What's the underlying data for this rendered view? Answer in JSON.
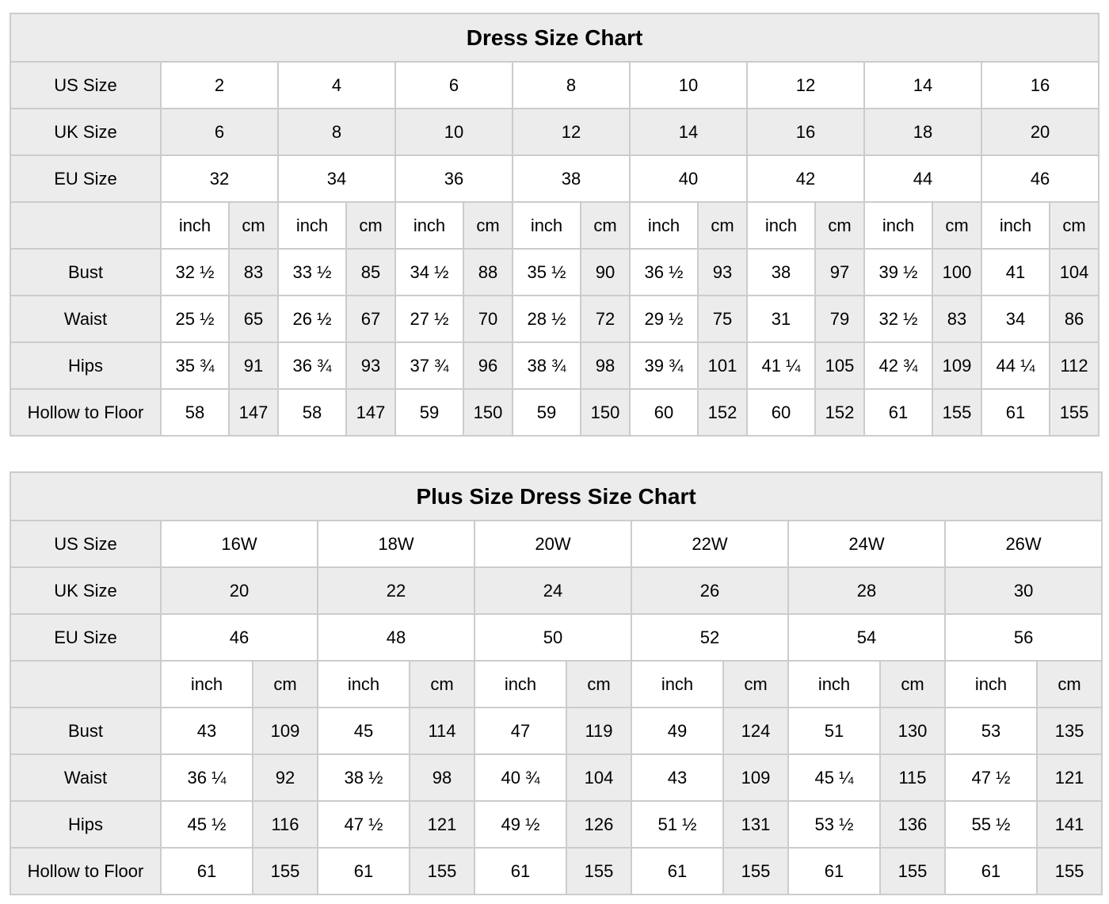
{
  "colors": {
    "background": "#ffffff",
    "shaded_cell": "#ececec",
    "border": "#cccccc",
    "text": "#000000"
  },
  "chart_data": [
    {
      "type": "table",
      "title": "Dress Size Chart",
      "unit_headers": [
        "inch",
        "cm"
      ],
      "size_rows": [
        {
          "label": "US Size",
          "shaded": false,
          "values": [
            "2",
            "4",
            "6",
            "8",
            "10",
            "12",
            "14",
            "16"
          ]
        },
        {
          "label": "UK Size",
          "shaded": true,
          "values": [
            "6",
            "8",
            "10",
            "12",
            "14",
            "16",
            "18",
            "20"
          ]
        },
        {
          "label": "EU Size",
          "shaded": false,
          "values": [
            "32",
            "34",
            "36",
            "38",
            "40",
            "42",
            "44",
            "46"
          ]
        }
      ],
      "measure_rows": [
        {
          "label": "Bust",
          "pairs": [
            [
              "32 ½",
              "83"
            ],
            [
              "33 ½",
              "85"
            ],
            [
              "34 ½",
              "88"
            ],
            [
              "35 ½",
              "90"
            ],
            [
              "36 ½",
              "93"
            ],
            [
              "38",
              "97"
            ],
            [
              "39 ½",
              "100"
            ],
            [
              "41",
              "104"
            ]
          ]
        },
        {
          "label": "Waist",
          "pairs": [
            [
              "25 ½",
              "65"
            ],
            [
              "26 ½",
              "67"
            ],
            [
              "27 ½",
              "70"
            ],
            [
              "28 ½",
              "72"
            ],
            [
              "29 ½",
              "75"
            ],
            [
              "31",
              "79"
            ],
            [
              "32 ½",
              "83"
            ],
            [
              "34",
              "86"
            ]
          ]
        },
        {
          "label": "Hips",
          "pairs": [
            [
              "35 ¾",
              "91"
            ],
            [
              "36 ¾",
              "93"
            ],
            [
              "37 ¾",
              "96"
            ],
            [
              "38 ¾",
              "98"
            ],
            [
              "39 ¾",
              "101"
            ],
            [
              "41 ¼",
              "105"
            ],
            [
              "42 ¾",
              "109"
            ],
            [
              "44 ¼",
              "112"
            ]
          ]
        },
        {
          "label": "Hollow to Floor",
          "pairs": [
            [
              "58",
              "147"
            ],
            [
              "58",
              "147"
            ],
            [
              "59",
              "150"
            ],
            [
              "59",
              "150"
            ],
            [
              "60",
              "152"
            ],
            [
              "60",
              "152"
            ],
            [
              "61",
              "155"
            ],
            [
              "61",
              "155"
            ]
          ]
        }
      ]
    },
    {
      "type": "table",
      "title": "Plus Size Dress Size Chart",
      "unit_headers": [
        "inch",
        "cm"
      ],
      "size_rows": [
        {
          "label": "US Size",
          "shaded": false,
          "values": [
            "16W",
            "18W",
            "20W",
            "22W",
            "24W",
            "26W"
          ]
        },
        {
          "label": "UK Size",
          "shaded": true,
          "values": [
            "20",
            "22",
            "24",
            "26",
            "28",
            "30"
          ]
        },
        {
          "label": "EU Size",
          "shaded": false,
          "values": [
            "46",
            "48",
            "50",
            "52",
            "54",
            "56"
          ]
        }
      ],
      "measure_rows": [
        {
          "label": "Bust",
          "pairs": [
            [
              "43",
              "109"
            ],
            [
              "45",
              "114"
            ],
            [
              "47",
              "119"
            ],
            [
              "49",
              "124"
            ],
            [
              "51",
              "130"
            ],
            [
              "53",
              "135"
            ]
          ]
        },
        {
          "label": "Waist",
          "pairs": [
            [
              "36 ¼",
              "92"
            ],
            [
              "38 ½",
              "98"
            ],
            [
              "40 ¾",
              "104"
            ],
            [
              "43",
              "109"
            ],
            [
              "45 ¼",
              "115"
            ],
            [
              "47 ½",
              "121"
            ]
          ]
        },
        {
          "label": "Hips",
          "pairs": [
            [
              "45 ½",
              "116"
            ],
            [
              "47 ½",
              "121"
            ],
            [
              "49 ½",
              "126"
            ],
            [
              "51 ½",
              "131"
            ],
            [
              "53 ½",
              "136"
            ],
            [
              "55 ½",
              "141"
            ]
          ]
        },
        {
          "label": "Hollow to Floor",
          "pairs": [
            [
              "61",
              "155"
            ],
            [
              "61",
              "155"
            ],
            [
              "61",
              "155"
            ],
            [
              "61",
              "155"
            ],
            [
              "61",
              "155"
            ],
            [
              "61",
              "155"
            ]
          ]
        }
      ]
    }
  ]
}
